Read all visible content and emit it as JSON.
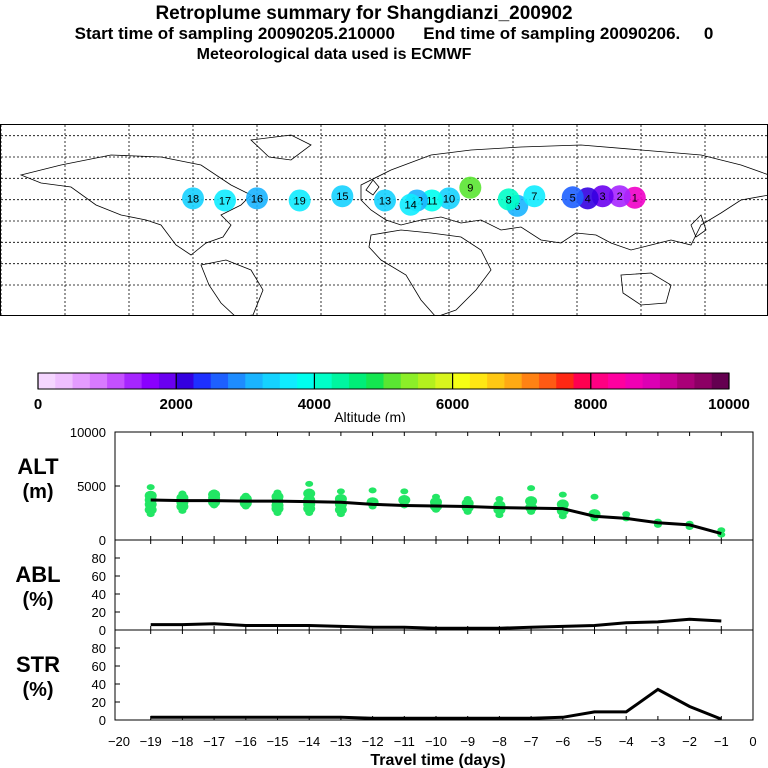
{
  "header": {
    "title": "Retroplume summary for Shangdianzi_200902",
    "subtitle_start": "Start time of sampling 20090205.210000",
    "subtitle_end": "End time of sampling 20090206.",
    "subtitle_end_value": "0",
    "meteo": "Meteorological data used is ECMWF"
  },
  "colorbar": {
    "label": "Altitude (m)",
    "ticks": [
      "0",
      "2000",
      "4000",
      "6000",
      "8000",
      "10000"
    ],
    "colors": [
      "#f5d6ff",
      "#efbfff",
      "#e49cff",
      "#d87aff",
      "#c450ff",
      "#a626ff",
      "#8a00ff",
      "#6a00f0",
      "#3400e0",
      "#1e30ff",
      "#1e60ff",
      "#1e8cff",
      "#1ab4ff",
      "#15d2ff",
      "#10ecff",
      "#00ffee",
      "#00ffc8",
      "#00f5a0",
      "#00ee78",
      "#14e650",
      "#5ae632",
      "#8cee28",
      "#b4f01e",
      "#d8f51e",
      "#f5ff14",
      "#ffe614",
      "#ffc814",
      "#ffaa14",
      "#ff8214",
      "#ff5a14",
      "#ff2814",
      "#ff0050",
      "#ff0082",
      "#ff00a0",
      "#f000b4",
      "#dc00b4",
      "#c80096",
      "#aa0078",
      "#8c0064",
      "#640050"
    ]
  },
  "chart_data": [
    {
      "type": "line",
      "panel_label": [
        "ALT",
        "(m)"
      ],
      "x": [
        -19,
        -18,
        -17,
        -16,
        -15,
        -14,
        -13,
        -12,
        -11,
        -10,
        -9,
        -8,
        -7,
        -6,
        -5,
        -4,
        -3,
        -2,
        -1
      ],
      "series": [
        {
          "name": "mean altitude",
          "values": [
            3700,
            3650,
            3650,
            3600,
            3600,
            3550,
            3500,
            3300,
            3200,
            3150,
            3100,
            3000,
            2950,
            2900,
            2200,
            2000,
            1600,
            1400,
            600
          ]
        }
      ],
      "scatter_points": [
        {
          "x": -19,
          "y": [
            4900,
            4100,
            3700,
            3300,
            2800,
            2400
          ]
        },
        {
          "x": -18,
          "y": [
            4300,
            3900,
            3500,
            3100,
            2700
          ]
        },
        {
          "x": -17,
          "y": [
            4400,
            4200,
            3900,
            3500,
            3200
          ]
        },
        {
          "x": -16,
          "y": [
            4100,
            3800,
            3400,
            3100
          ]
        },
        {
          "x": -15,
          "y": [
            4400,
            4000,
            3600,
            3200,
            2900,
            2500
          ]
        },
        {
          "x": -14,
          "y": [
            5200,
            4300,
            3700,
            3300,
            2900,
            2500
          ]
        },
        {
          "x": -13,
          "y": [
            4500,
            3800,
            3300,
            2800,
            2400
          ]
        },
        {
          "x": -12,
          "y": [
            4600,
            3500,
            3100
          ]
        },
        {
          "x": -11,
          "y": [
            4500,
            3700,
            3200
          ]
        },
        {
          "x": -10,
          "y": [
            4000,
            3500,
            3100,
            2800
          ]
        },
        {
          "x": -9,
          "y": [
            3800,
            3400,
            3000,
            2600
          ]
        },
        {
          "x": -8,
          "y": [
            3800,
            3200,
            2800,
            2300
          ]
        },
        {
          "x": -7,
          "y": [
            4800,
            3600,
            3000,
            2600
          ]
        },
        {
          "x": -6,
          "y": [
            4200,
            3300,
            2700,
            2200
          ]
        },
        {
          "x": -5,
          "y": [
            4000,
            2400,
            2000
          ]
        },
        {
          "x": -4,
          "y": [
            2400,
            2000
          ]
        },
        {
          "x": -3,
          "y": [
            1700,
            1400
          ]
        },
        {
          "x": -2,
          "y": [
            1500,
            1200
          ]
        },
        {
          "x": -1,
          "y": [
            900,
            500
          ]
        }
      ],
      "ylim": [
        0,
        10000
      ],
      "yticks": [
        "0",
        "5000",
        "10000"
      ]
    },
    {
      "type": "line",
      "panel_label": [
        "ABL",
        "(%)"
      ],
      "x": [
        -19,
        -18,
        -17,
        -16,
        -15,
        -14,
        -13,
        -12,
        -11,
        -10,
        -9,
        -8,
        -7,
        -6,
        -5,
        -4,
        -3,
        -2,
        -1
      ],
      "series": [
        {
          "name": "ABL fraction",
          "values": [
            6,
            6,
            7,
            5,
            5,
            5,
            4,
            3,
            3,
            2,
            2,
            2,
            3,
            4,
            5,
            8,
            9,
            12,
            10
          ]
        }
      ],
      "ylim": [
        0,
        100
      ],
      "yticks": [
        "0",
        "20",
        "40",
        "60",
        "80"
      ]
    },
    {
      "type": "line",
      "panel_label": [
        "STR",
        "(%)"
      ],
      "x": [
        -19,
        -18,
        -17,
        -16,
        -15,
        -14,
        -13,
        -12,
        -11,
        -10,
        -9,
        -8,
        -7,
        -6,
        -5,
        -4,
        -3,
        -2,
        -1
      ],
      "series": [
        {
          "name": "stratospheric fraction",
          "values": [
            3,
            3,
            3,
            3,
            3,
            3,
            3,
            2,
            2,
            2,
            2,
            2,
            2,
            3,
            9,
            9,
            34,
            15,
            1
          ]
        }
      ],
      "ylim": [
        0,
        100
      ],
      "yticks": [
        "0",
        "20",
        "40",
        "60",
        "80"
      ],
      "xlabel": "Travel time (days)",
      "xticks": [
        "−20",
        "−19",
        "−18",
        "−17",
        "−16",
        "−15",
        "−14",
        "−13",
        "−12",
        "−11",
        "−10",
        "−9",
        "−8",
        "−7",
        "−6",
        "−5",
        "−4",
        "−3",
        "−2",
        "−1",
        "0"
      ]
    }
  ],
  "map": {
    "markers": [
      {
        "label": "1",
        "lon": 117.1,
        "lat": 40.6,
        "color": "#f000c8"
      },
      {
        "label": "2",
        "lon": 110,
        "lat": 42,
        "color": "#a626ff"
      },
      {
        "label": "3",
        "lon": 102,
        "lat": 42,
        "color": "#6a00f0"
      },
      {
        "label": "4",
        "lon": 95,
        "lat": 40,
        "color": "#3400e0"
      },
      {
        "label": "5",
        "lon": 88,
        "lat": 41,
        "color": "#1e60ff"
      },
      {
        "label": "6",
        "lon": 62,
        "lat": 33,
        "color": "#1ab4ff"
      },
      {
        "label": "7",
        "lon": 70,
        "lat": 42,
        "color": "#10ecff"
      },
      {
        "label": "8",
        "lon": 58,
        "lat": 39,
        "color": "#00ffc8"
      },
      {
        "label": "9",
        "lon": 40,
        "lat": 50,
        "color": "#5ae632"
      },
      {
        "label": "10",
        "lon": 30,
        "lat": 40,
        "color": "#15d2ff"
      },
      {
        "label": "11",
        "lon": 22,
        "lat": 38,
        "color": "#00ffee"
      },
      {
        "label": "12",
        "lon": 15,
        "lat": 38,
        "color": "#1ab4ff"
      },
      {
        "label": "13",
        "lon": 0,
        "lat": 38,
        "color": "#15d2ff"
      },
      {
        "label": "14",
        "lon": 12,
        "lat": 34,
        "color": "#10ecff"
      },
      {
        "label": "15",
        "lon": -20,
        "lat": 42,
        "color": "#15d2ff"
      },
      {
        "label": "16",
        "lon": -60,
        "lat": 40,
        "color": "#1ab4ff"
      },
      {
        "label": "17",
        "lon": -75,
        "lat": 38,
        "color": "#10ecff"
      },
      {
        "label": "18",
        "lon": -90,
        "lat": 40,
        "color": "#15d2ff"
      },
      {
        "label": "19",
        "lon": -40,
        "lat": 38,
        "color": "#10ecff"
      }
    ]
  }
}
